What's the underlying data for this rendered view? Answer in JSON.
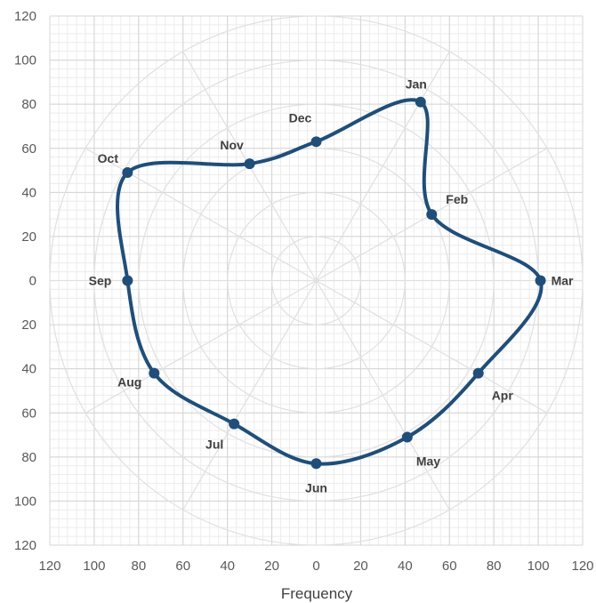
{
  "chart_data": {
    "type": "radar",
    "xlabel": "Frequency",
    "ylabel": "",
    "xlim": [
      -120,
      120
    ],
    "ylim": [
      -120,
      120
    ],
    "x_ticks": [
      "120",
      "100",
      "80",
      "60",
      "40",
      "20",
      "0",
      "20",
      "40",
      "60",
      "80",
      "100",
      "120"
    ],
    "y_ticks": [
      "120",
      "100",
      "80",
      "60",
      "40",
      "20",
      "0",
      "20",
      "40",
      "60",
      "80",
      "100",
      "120"
    ],
    "rings": [
      20,
      40,
      60,
      80,
      100,
      120
    ],
    "grid": true,
    "line_color": "#1f4e79",
    "points": [
      {
        "label": "Jan",
        "x": 47,
        "y": 81
      },
      {
        "label": "Feb",
        "x": 52,
        "y": 30
      },
      {
        "label": "Mar",
        "x": 101,
        "y": 0
      },
      {
        "label": "Apr",
        "x": 73,
        "y": -42
      },
      {
        "label": "May",
        "x": 41,
        "y": -71
      },
      {
        "label": "Jun",
        "x": 0,
        "y": -83
      },
      {
        "label": "Jul",
        "x": -37,
        "y": -65
      },
      {
        "label": "Aug",
        "x": -73,
        "y": -42
      },
      {
        "label": "Sep",
        "x": -85,
        "y": 0
      },
      {
        "label": "Oct",
        "x": -85,
        "y": 49
      },
      {
        "label": "Nov",
        "x": -30,
        "y": 53
      },
      {
        "label": "Dec",
        "x": 0,
        "y": 63
      }
    ]
  }
}
